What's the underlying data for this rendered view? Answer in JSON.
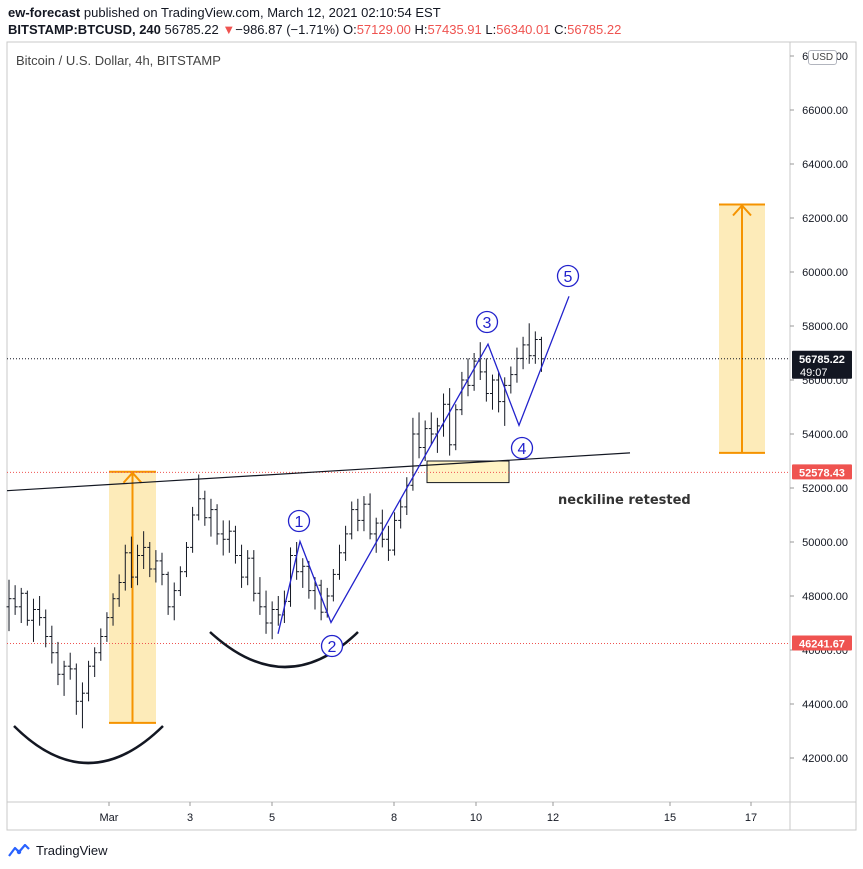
{
  "header": {
    "author": "ew-forecast",
    "published": "published on TradingView.com, March 12, 2021 02:10:54 EST",
    "symbol": "BITSTAMP:BTCUSD, 240",
    "last": "56785.22",
    "change_arrow": "▼",
    "change": "−986.87 (−1.71%)",
    "o_label": "O:",
    "o_value": "57129.00",
    "h_label": "H:",
    "h_value": "57435.91",
    "l_label": "L:",
    "l_value": "56340.01",
    "c_label": "C:",
    "c_value": "56785.22"
  },
  "chart_title": "Bitcoin / U.S. Dollar, 4h, BITSTAMP",
  "currency": "USD",
  "footer": {
    "brand": "TradingView"
  },
  "colors": {
    "candle": "#131722",
    "wave": "#2222cc",
    "highlight": "#fde7ad",
    "arrow": "#f59300",
    "price_label": "#ef5350",
    "price_label_dark": "#131722"
  },
  "chart_data": {
    "type": "ohlc",
    "y_range": [
      40400,
      68600
    ],
    "y_ticks": [
      42000,
      44000,
      46000,
      48000,
      50000,
      52000,
      54000,
      56000,
      58000,
      60000,
      62000,
      64000,
      66000,
      68000
    ],
    "y_tick_labels": [
      "42000.00",
      "44000.00",
      "46000.00",
      "48000.00",
      "50000.00",
      "52000.00",
      "54000.00",
      "56000.00",
      "58000.00",
      "60000.00",
      "62000.00",
      "64000.00",
      "66000.00",
      "68000.00"
    ],
    "x_tick_labels": [
      {
        "label": "Mar",
        "date": "2021-03-01"
      },
      {
        "label": "3",
        "date": "2021-03-03"
      },
      {
        "label": "5",
        "date": "2021-03-05"
      },
      {
        "label": "8",
        "date": "2021-03-08"
      },
      {
        "label": "10",
        "date": "2021-03-10"
      },
      {
        "label": "12",
        "date": "2021-03-12"
      },
      {
        "label": "15",
        "date": "2021-03-15"
      },
      {
        "label": "17",
        "date": "2021-03-17"
      }
    ],
    "price_labels": [
      {
        "value": 56785.22,
        "text": "56785.22",
        "sub": "49:07",
        "style": "dark"
      },
      {
        "value": 52578.43,
        "text": "52578.43",
        "style": "red"
      },
      {
        "value": 46241.67,
        "text": "46241.67",
        "style": "red"
      }
    ],
    "candles": [
      [
        47600,
        48600,
        46700,
        47900
      ],
      [
        47900,
        48400,
        47300,
        47600
      ],
      [
        47600,
        48300,
        47000,
        48100
      ],
      [
        48100,
        48200,
        46900,
        47100
      ],
      [
        47100,
        47900,
        46300,
        47500
      ],
      [
        47500,
        48000,
        46900,
        47200
      ],
      [
        47200,
        47500,
        46100,
        46500
      ],
      [
        46500,
        46900,
        45500,
        45900
      ],
      [
        45900,
        46300,
        44700,
        45100
      ],
      [
        45100,
        45600,
        44300,
        45400
      ],
      [
        45400,
        45900,
        44900,
        45300
      ],
      [
        45300,
        45500,
        43600,
        44100
      ],
      [
        44100,
        44800,
        43100,
        44400
      ],
      [
        44400,
        45600,
        44100,
        45400
      ],
      [
        45400,
        46100,
        45000,
        45900
      ],
      [
        45900,
        46800,
        45600,
        46500
      ],
      [
        46500,
        47400,
        46300,
        47200
      ],
      [
        47200,
        48100,
        46900,
        47900
      ],
      [
        47900,
        48800,
        47600,
        48500
      ],
      [
        48500,
        49900,
        48200,
        49600
      ],
      [
        49600,
        50200,
        48300,
        48700
      ],
      [
        48700,
        49900,
        48400,
        49500
      ],
      [
        49500,
        50400,
        49000,
        49800
      ],
      [
        49800,
        50000,
        48700,
        49000
      ],
      [
        49000,
        49700,
        48500,
        49300
      ],
      [
        49300,
        49600,
        48400,
        48800
      ],
      [
        48800,
        48900,
        47300,
        47600
      ],
      [
        47600,
        48500,
        47100,
        48200
      ],
      [
        48200,
        49100,
        48000,
        48900
      ],
      [
        48900,
        50000,
        48700,
        49800
      ],
      [
        49800,
        51300,
        49600,
        51000
      ],
      [
        51000,
        52500,
        50800,
        51600
      ],
      [
        51600,
        51900,
        50600,
        50900
      ],
      [
        50900,
        51600,
        50200,
        51200
      ],
      [
        51200,
        51400,
        49900,
        50300
      ],
      [
        50300,
        50800,
        49500,
        50100
      ],
      [
        50100,
        50800,
        49600,
        50400
      ],
      [
        50400,
        50600,
        49200,
        49500
      ],
      [
        49500,
        49900,
        48300,
        48700
      ],
      [
        48700,
        49700,
        48400,
        49400
      ],
      [
        49400,
        49700,
        47800,
        48100
      ],
      [
        48100,
        48700,
        47300,
        47600
      ],
      [
        47600,
        48200,
        46600,
        47000
      ],
      [
        47000,
        47800,
        46400,
        47500
      ],
      [
        47500,
        48000,
        46900,
        47300
      ],
      [
        47300,
        48200,
        47000,
        47800
      ],
      [
        47800,
        49800,
        47600,
        49500
      ],
      [
        49500,
        50000,
        48600,
        48900
      ],
      [
        48900,
        49400,
        48300,
        49100
      ],
      [
        49100,
        49300,
        47900,
        48200
      ],
      [
        48200,
        48700,
        47500,
        48400
      ],
      [
        48400,
        48600,
        47100,
        47400
      ],
      [
        47400,
        48300,
        47200,
        48000
      ],
      [
        48000,
        49000,
        47800,
        48800
      ],
      [
        48800,
        49900,
        48600,
        49600
      ],
      [
        49600,
        50600,
        49300,
        50300
      ],
      [
        50300,
        51500,
        50100,
        51200
      ],
      [
        51200,
        51600,
        50400,
        50800
      ],
      [
        50800,
        51700,
        50400,
        51400
      ],
      [
        51400,
        51800,
        50100,
        50300
      ],
      [
        50300,
        50900,
        49600,
        50700
      ],
      [
        50700,
        51200,
        49800,
        50100
      ],
      [
        50100,
        50600,
        49300,
        49700
      ],
      [
        49700,
        51100,
        49500,
        50800
      ],
      [
        50800,
        51600,
        50500,
        51300
      ],
      [
        51300,
        52400,
        51000,
        52100
      ],
      [
        52100,
        54600,
        51900,
        54000
      ],
      [
        54000,
        54800,
        53100,
        53500
      ],
      [
        53500,
        54500,
        53000,
        54200
      ],
      [
        54200,
        54800,
        53600,
        54000
      ],
      [
        54000,
        54600,
        53300,
        54300
      ],
      [
        54300,
        55500,
        53900,
        55100
      ],
      [
        55100,
        55700,
        53200,
        53600
      ],
      [
        53600,
        55100,
        53400,
        54900
      ],
      [
        54900,
        56300,
        54700,
        56000
      ],
      [
        56000,
        56800,
        55400,
        55800
      ],
      [
        55800,
        57000,
        55600,
        56700
      ],
      [
        56700,
        57400,
        56000,
        56300
      ],
      [
        56300,
        56800,
        55200,
        55500
      ],
      [
        55500,
        56200,
        54900,
        56000
      ],
      [
        56000,
        56300,
        54800,
        55200
      ],
      [
        55200,
        56100,
        54300,
        55800
      ],
      [
        55800,
        56500,
        55500,
        56200
      ],
      [
        56200,
        57200,
        55900,
        56800
      ],
      [
        56800,
        57600,
        56400,
        57300
      ],
      [
        57300,
        58100,
        56600,
        56900
      ],
      [
        56900,
        57800,
        56600,
        57500
      ],
      [
        57500,
        57600,
        56300,
        56785
      ]
    ],
    "waves": [
      {
        "label": "1",
        "value": 50020
      },
      {
        "label": "2",
        "value": 47020
      },
      {
        "label": "3",
        "value": 57330
      },
      {
        "label": "4",
        "value": 54320
      },
      {
        "label": "5",
        "value": 59100
      }
    ],
    "neckline": {
      "start": 51900,
      "end": 53300
    },
    "annotation": "neckiline retested",
    "target_boxes": [
      {
        "low": 43300,
        "high": 52600
      },
      {
        "low": 53300,
        "high": 62500
      }
    ]
  }
}
